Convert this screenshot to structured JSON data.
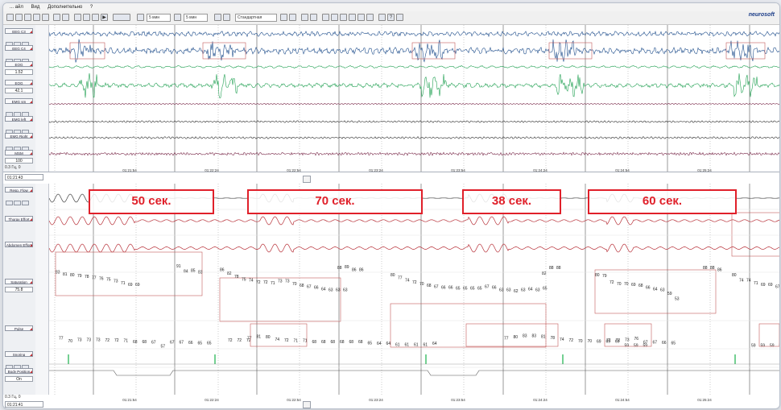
{
  "menu": [
    "... айл",
    "Вид",
    "Дополнительно",
    "?"
  ],
  "toolbar": {
    "combo1": "5 мин",
    "combo2": "5 мин",
    "combo3": "Стандартная",
    "logo": "neurosoft"
  },
  "upper": {
    "channels": [
      {
        "label": "EEG C3",
        "value": ""
      },
      {
        "label": "EEG C4",
        "value": ""
      },
      {
        "label": "EOG",
        "value": "1.52"
      },
      {
        "label": "EOG",
        "value": "42.1"
      },
      {
        "label": "EMG sm",
        "value": ""
      },
      {
        "label": "EMG left",
        "value": ""
      },
      {
        "label": "EMG Right",
        "value": ""
      },
      {
        "label": "MSM",
        "value": "100"
      }
    ],
    "footer_left": "0.3 Гц, 0",
    "nav_time": "01:21:43",
    "time_ticks": [
      "01:21:54",
      "01:22:24",
      "01:22:54",
      "01:23:24",
      "01:23:54",
      "01:24:24",
      "01:24:54",
      "01:25:24",
      "01:25:54",
      "01:26:24"
    ]
  },
  "lower": {
    "channels": [
      {
        "label": "Resp. Flow",
        "value": ""
      },
      {
        "label": "Thorax Effort",
        "value": ""
      },
      {
        "label": "Abdomen Effort",
        "value": ""
      },
      {
        "label": "Saturation",
        "value": "75.8"
      },
      {
        "label": "Pulse",
        "value": ""
      },
      {
        "label": "Snoring",
        "value": ""
      },
      {
        "label": "Body Position",
        "value": "On"
      }
    ],
    "footer_left": "0.3 Гц, 0",
    "nav_time": "01:21:41",
    "time_ticks": [
      "01:21:54",
      "01:22:24",
      "01:22:54",
      "01:23:24",
      "01:23:54",
      "01:24:24",
      "01:24:54",
      "01:25:24",
      "01:25:54",
      "01:26:24"
    ]
  },
  "apneas": [
    {
      "label": "50 сек."
    },
    {
      "label": "70 сек."
    },
    {
      "label": "38 сек."
    },
    {
      "label": "60 сек."
    }
  ],
  "saturation_groups": [
    [
      "83",
      "81",
      "80",
      "79",
      "78",
      "77",
      "76",
      "75",
      "73",
      "71",
      "69",
      "69"
    ],
    [
      "91",
      "84",
      "85",
      "83"
    ],
    [
      "86",
      "82",
      "78",
      "75",
      "74",
      "72",
      "72",
      "71",
      "73",
      "73",
      "70",
      "68",
      "67",
      "66",
      "64",
      "63",
      "63",
      "63"
    ],
    [
      "88",
      "89",
      "86",
      "86"
    ],
    [
      "80",
      "77",
      "74",
      "72",
      "70",
      "68",
      "67",
      "66",
      "66",
      "65",
      "65",
      "65",
      "65",
      "67",
      "66",
      "63",
      "63",
      "62",
      "63",
      "64",
      "63",
      "65"
    ],
    [
      "82",
      "88",
      "88"
    ],
    [
      "80",
      "79",
      "72",
      "70",
      "70",
      "69",
      "68",
      "66",
      "64",
      "63",
      "59",
      "53"
    ],
    [
      "88",
      "88",
      "86"
    ],
    [
      "80",
      "74",
      "74",
      "71",
      "69",
      "69",
      "67",
      "66",
      "66",
      "67",
      "66",
      "64",
      "63"
    ]
  ],
  "pulse_groups": [
    [
      "77",
      "70",
      "73",
      "73",
      "73",
      "72",
      "72",
      "71",
      "68",
      "68",
      "67",
      "57",
      "67",
      "67",
      "66",
      "65",
      "65"
    ],
    [
      "72",
      "72",
      "72"
    ],
    [
      "77",
      "81",
      "80",
      "74",
      "72",
      "71",
      "71",
      "68",
      "68",
      "68",
      "68",
      "68",
      "68",
      "65",
      "64",
      "64",
      "61",
      "61",
      "61",
      "61",
      "64"
    ],
    [
      "77",
      "80",
      "83",
      "83",
      "81",
      "78",
      "74",
      "72",
      "70",
      "70",
      "69",
      "69",
      "69",
      "59",
      "59",
      "59"
    ],
    [
      "72",
      "72",
      "73",
      "76",
      "67",
      "67",
      "66",
      "65"
    ],
    [
      "59",
      "59",
      "59",
      "59",
      "58",
      "58",
      "58",
      "58",
      "58",
      "58",
      "73"
    ]
  ],
  "colors": {
    "eeg": "#1f4e8c",
    "eog": "#20a052",
    "emg": "#7a2a4a",
    "resp": "#404040",
    "effort": "#b8323a",
    "apnea": "#e0202a",
    "snore": "#18b04a"
  }
}
